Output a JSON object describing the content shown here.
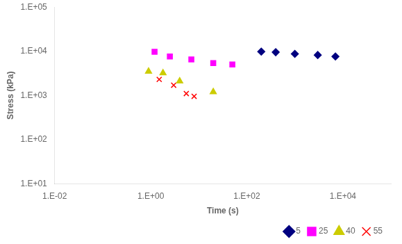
{
  "chart_data": {
    "type": "scatter",
    "xlabel": "Time (s)",
    "ylabel": "Stress (kPa)",
    "log": true,
    "grid": false,
    "legend": "lower right",
    "xlim": [
      0.01,
      100000
    ],
    "ylim": [
      10,
      100000
    ],
    "xticks": [
      {
        "value": 0.01,
        "label": "1.E-02"
      },
      {
        "value": 1,
        "label": "1.E+00"
      },
      {
        "value": 100,
        "label": "1.E+02"
      },
      {
        "value": 10000,
        "label": "1.E+04"
      }
    ],
    "yticks": [
      {
        "value": 10,
        "label": "1.E+01"
      },
      {
        "value": 100,
        "label": "1.E+02"
      },
      {
        "value": 1000,
        "label": "1.E+03"
      },
      {
        "value": 10000,
        "label": "1.E+04"
      },
      {
        "value": 100000,
        "label": "1.E+05"
      }
    ],
    "series": [
      {
        "name": "5",
        "color": "#000080",
        "marker": "diamond",
        "x": [
          200,
          400,
          1000,
          3000,
          7000
        ],
        "values": [
          9800,
          9500,
          8700,
          8200,
          7600
        ]
      },
      {
        "name": "25",
        "color": "#FF00FF",
        "marker": "square",
        "x": [
          1.2,
          2.5,
          7.0,
          20.0,
          50.0
        ],
        "values": [
          9700,
          7600,
          6500,
          5400,
          5000
        ]
      },
      {
        "name": "40",
        "color": "#CCCC00",
        "marker": "triangle",
        "x": [
          0.9,
          1.8,
          4.0,
          20.0
        ],
        "values": [
          3500,
          3200,
          2100,
          1200
        ]
      },
      {
        "name": "55",
        "color": "#FF0000",
        "marker": "x",
        "x": [
          1.5,
          3.0,
          5.5,
          8.0
        ],
        "values": [
          2300,
          1700,
          1100,
          950
        ]
      }
    ]
  }
}
